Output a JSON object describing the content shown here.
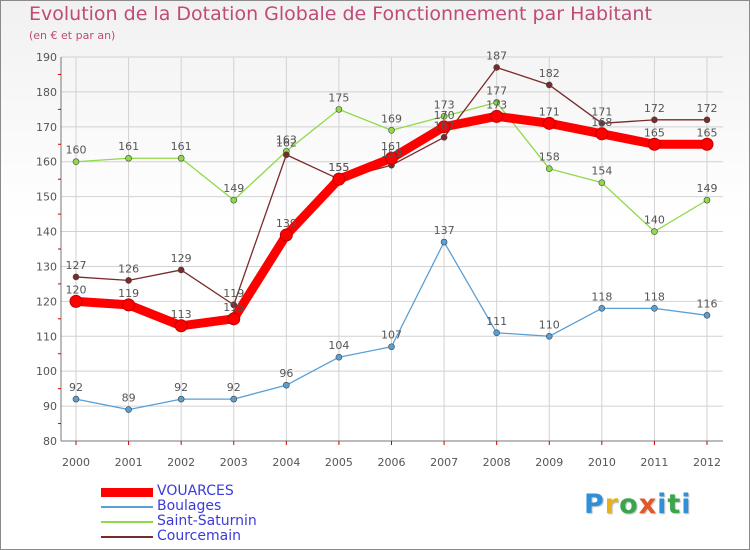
{
  "title": "Evolution de la Dotation Globale de Fonctionnement par Habitant",
  "subtitle": "(en € et par an)",
  "logo": {
    "letters": [
      "P",
      "r",
      "o",
      "x",
      "i",
      "t",
      "i"
    ],
    "colors": [
      "#2f8fd8",
      "#e5b21e",
      "#3aa54a",
      "#e0582a",
      "#2f8fd8",
      "#3aa54a",
      "#2f8fd8"
    ]
  },
  "chart_data": {
    "type": "line",
    "title": "Evolution de la Dotation Globale de Fonctionnement par Habitant",
    "subtitle": "(en € et par an)",
    "xlabel": "",
    "ylabel": "",
    "x": [
      "2000",
      "2001",
      "2002",
      "2003",
      "2004",
      "2005",
      "2006",
      "2007",
      "2008",
      "2009",
      "2010",
      "2011",
      "2012"
    ],
    "ylim": [
      80,
      190
    ],
    "yticks": [
      "80",
      "90",
      "100",
      "110",
      "120",
      "130",
      "140",
      "150",
      "160",
      "170",
      "180",
      "190"
    ],
    "grid": true,
    "legend_position": "bottom-left",
    "series": [
      {
        "name": "VOUARCES",
        "color": "#ff0000",
        "values": [
          120,
          119,
          113,
          115,
          139,
          155,
          161,
          170,
          173,
          171,
          168,
          165,
          165
        ],
        "labels": [
          "120",
          "119",
          "113",
          "115",
          "139",
          "155",
          "161",
          "170",
          "173",
          "171",
          "168",
          "165",
          "165"
        ]
      },
      {
        "name": "Boulages",
        "color": "#5a9fd4",
        "values": [
          92,
          89,
          92,
          92,
          96,
          104,
          107,
          137,
          111,
          110,
          118,
          118,
          116
        ],
        "labels": [
          "92",
          "89",
          "92",
          "92",
          "96",
          "104",
          "107",
          "137",
          "111",
          "110",
          "118",
          "118",
          "116"
        ]
      },
      {
        "name": "Saint-Saturnin",
        "color": "#8fd94a",
        "values": [
          160,
          161,
          161,
          149,
          163,
          175,
          169,
          173,
          177,
          158,
          154,
          140,
          149
        ],
        "labels": [
          "160",
          "161",
          "161",
          "149",
          "163",
          "175",
          "169",
          "173",
          "177",
          "158",
          "154",
          "140",
          "149"
        ]
      },
      {
        "name": "Courcemain",
        "color": "#7a2a2a",
        "values": [
          127,
          126,
          129,
          119,
          162,
          155,
          159,
          167,
          187,
          182,
          171,
          172,
          172
        ],
        "labels": [
          "127",
          "126",
          "129",
          "119",
          "162",
          "155",
          "159",
          "167",
          "187",
          "182",
          "171",
          "172",
          "172"
        ]
      }
    ]
  }
}
